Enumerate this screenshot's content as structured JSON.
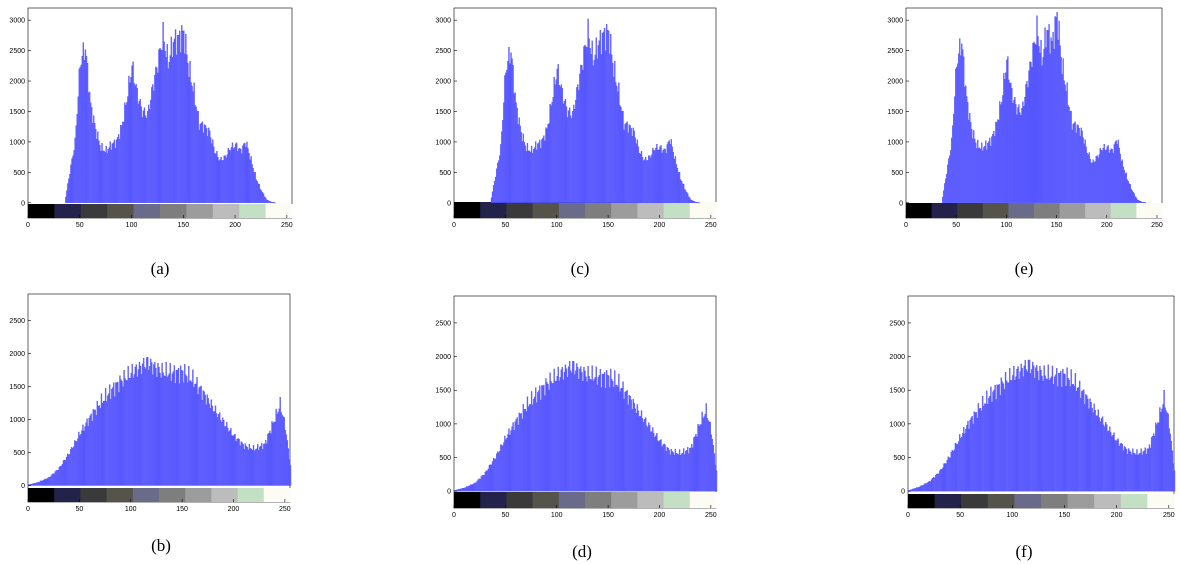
{
  "colors": {
    "bar": "#2828ff",
    "bar_fill": "#7070ff",
    "axes": "#000000",
    "colorbar": [
      "#000000",
      "#22224a",
      "#3a3a3a",
      "#54544a",
      "#6a6a8a",
      "#7e7e7e",
      "#9c9c9c",
      "#bcbcbc",
      "#c4e0c4",
      "#fcfcf4"
    ]
  },
  "chart_data": [
    {
      "id": "a",
      "caption": "(a)",
      "type": "bar",
      "xlim": [
        0,
        255
      ],
      "ylim": [
        -250,
        3200
      ],
      "xticks": [
        0,
        50,
        100,
        150,
        200,
        250
      ],
      "yticks": [
        0,
        500,
        1000,
        1500,
        2000,
        2500,
        3000
      ],
      "x": [
        35,
        45,
        50,
        55,
        60,
        65,
        70,
        75,
        80,
        85,
        90,
        95,
        100,
        105,
        110,
        115,
        120,
        125,
        130,
        135,
        140,
        145,
        150,
        155,
        160,
        165,
        170,
        175,
        180,
        185,
        190,
        195,
        200,
        205,
        210,
        215,
        220,
        225,
        230,
        235,
        240
      ],
      "values": [
        0,
        1000,
        2300,
        2550,
        1600,
        1200,
        900,
        850,
        950,
        1000,
        1250,
        1700,
        2250,
        1800,
        1500,
        1450,
        1900,
        2300,
        2750,
        2300,
        2650,
        2700,
        2800,
        2200,
        1800,
        1300,
        1250,
        1150,
        850,
        700,
        750,
        900,
        950,
        850,
        1000,
        700,
        400,
        200,
        50,
        10,
        0
      ]
    },
    {
      "id": "c",
      "caption": "(c)",
      "type": "bar",
      "xlim": [
        0,
        255
      ],
      "ylim": [
        -250,
        3200
      ],
      "xticks": [
        0,
        50,
        100,
        150,
        200,
        250
      ],
      "yticks": [
        0,
        500,
        1000,
        1500,
        2000,
        2500,
        3000
      ],
      "x": [
        35,
        45,
        50,
        55,
        60,
        65,
        70,
        75,
        80,
        85,
        90,
        95,
        100,
        105,
        110,
        115,
        120,
        125,
        130,
        135,
        140,
        145,
        150,
        155,
        160,
        165,
        170,
        175,
        180,
        185,
        190,
        195,
        200,
        205,
        210,
        215,
        220,
        225,
        230,
        235,
        240
      ],
      "values": [
        0,
        900,
        2200,
        2500,
        1600,
        1150,
        900,
        850,
        950,
        1000,
        1200,
        1700,
        2200,
        1800,
        1500,
        1450,
        1900,
        2350,
        2800,
        2350,
        2600,
        2750,
        2800,
        2200,
        1800,
        1300,
        1250,
        1150,
        850,
        700,
        750,
        900,
        900,
        850,
        1050,
        700,
        400,
        200,
        50,
        10,
        0
      ]
    },
    {
      "id": "e",
      "caption": "(e)",
      "type": "bar",
      "xlim": [
        0,
        255
      ],
      "ylim": [
        -250,
        3200
      ],
      "xticks": [
        0,
        50,
        100,
        150,
        200,
        250
      ],
      "yticks": [
        0,
        500,
        1000,
        1500,
        2000,
        2500,
        3000
      ],
      "x": [
        35,
        45,
        50,
        55,
        60,
        65,
        70,
        75,
        80,
        85,
        90,
        95,
        100,
        105,
        110,
        115,
        120,
        125,
        130,
        135,
        140,
        145,
        150,
        155,
        160,
        165,
        170,
        175,
        180,
        185,
        190,
        195,
        200,
        205,
        210,
        215,
        220,
        225,
        230,
        235,
        240
      ],
      "values": [
        0,
        1000,
        2300,
        2650,
        1700,
        1200,
        950,
        900,
        950,
        1050,
        1300,
        1700,
        2350,
        1800,
        1550,
        1500,
        1950,
        2400,
        2850,
        2350,
        2850,
        2600,
        3100,
        2250,
        1800,
        1300,
        1250,
        1150,
        850,
        650,
        750,
        900,
        900,
        850,
        1050,
        650,
        400,
        200,
        50,
        10,
        0
      ]
    },
    {
      "id": "b",
      "caption": "(b)",
      "type": "bar",
      "xlim": [
        0,
        255
      ],
      "ylim": [
        -250,
        2900
      ],
      "xticks": [
        0,
        50,
        100,
        150,
        200,
        250
      ],
      "yticks": [
        0,
        500,
        1000,
        1500,
        2000,
        2500
      ],
      "x": [
        0,
        10,
        20,
        30,
        40,
        50,
        60,
        70,
        80,
        90,
        100,
        110,
        115,
        120,
        130,
        140,
        150,
        160,
        170,
        180,
        190,
        200,
        210,
        220,
        230,
        240,
        245,
        250,
        255
      ],
      "values": [
        10,
        50,
        120,
        260,
        500,
        780,
        1030,
        1250,
        1430,
        1580,
        1700,
        1800,
        1870,
        1820,
        1720,
        1700,
        1720,
        1600,
        1400,
        1170,
        960,
        750,
        600,
        550,
        620,
        1020,
        1230,
        900,
        300
      ]
    },
    {
      "id": "d",
      "caption": "(d)",
      "type": "bar",
      "xlim": [
        0,
        255
      ],
      "ylim": [
        -250,
        2900
      ],
      "xticks": [
        0,
        50,
        100,
        150,
        200,
        250
      ],
      "yticks": [
        0,
        500,
        1000,
        1500,
        2000,
        2500
      ],
      "x": [
        0,
        10,
        20,
        30,
        40,
        50,
        60,
        70,
        80,
        90,
        100,
        110,
        115,
        120,
        130,
        140,
        150,
        160,
        170,
        180,
        190,
        200,
        210,
        220,
        230,
        240,
        245,
        250,
        255
      ],
      "values": [
        10,
        50,
        120,
        270,
        510,
        790,
        1040,
        1260,
        1440,
        1590,
        1710,
        1810,
        1860,
        1800,
        1720,
        1700,
        1700,
        1590,
        1390,
        1160,
        950,
        740,
        590,
        560,
        630,
        1050,
        1200,
        900,
        300
      ]
    },
    {
      "id": "f",
      "caption": "(f)",
      "type": "bar",
      "xlim": [
        0,
        255
      ],
      "ylim": [
        -250,
        2900
      ],
      "xticks": [
        0,
        50,
        100,
        150,
        200,
        250
      ],
      "yticks": [
        0,
        500,
        1000,
        1500,
        2000,
        2500
      ],
      "x": [
        0,
        10,
        20,
        30,
        40,
        50,
        60,
        70,
        80,
        90,
        100,
        110,
        115,
        120,
        130,
        140,
        150,
        160,
        170,
        180,
        190,
        200,
        210,
        220,
        230,
        240,
        245,
        250,
        255
      ],
      "values": [
        10,
        60,
        140,
        290,
        530,
        810,
        1060,
        1270,
        1450,
        1600,
        1720,
        1820,
        1880,
        1820,
        1730,
        1710,
        1720,
        1600,
        1400,
        1170,
        960,
        750,
        600,
        560,
        620,
        1080,
        1380,
        1000,
        300
      ]
    }
  ]
}
